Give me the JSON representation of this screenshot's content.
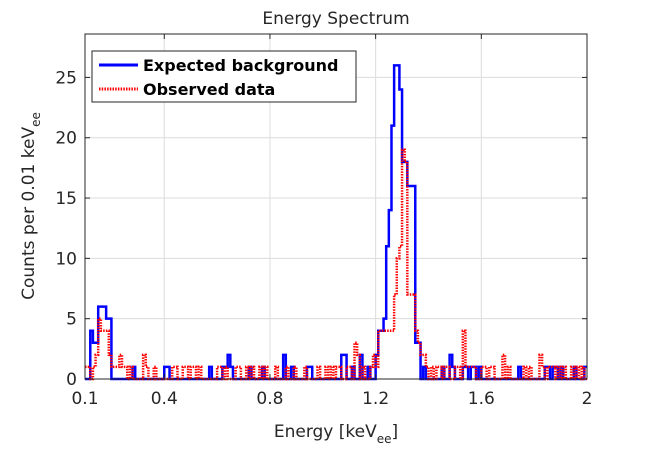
{
  "chart_data": {
    "type": "line",
    "style": "stairs",
    "title": "Energy Spectrum",
    "xlabel": "Energy [keV",
    "xlabel_sub": "ee",
    "xlabel_end": "]",
    "ylabel": "Counts per 0.01 keV",
    "ylabel_sub": "ee",
    "xlim": [
      0.1,
      2
    ],
    "ylim": [
      0,
      28.6
    ],
    "xticks": [
      0.1,
      0.4,
      0.8,
      1.2,
      1.6,
      2
    ],
    "xtick_labels": [
      "0.1",
      "0.4",
      "0.8",
      "1.2",
      "1.6",
      "2"
    ],
    "yticks": [
      0,
      5,
      10,
      15,
      20,
      25
    ],
    "ytick_labels": [
      "0",
      "5",
      "10",
      "15",
      "20",
      "25"
    ],
    "grid": true,
    "legend_position": "top-left",
    "bin_start": 0.1,
    "bin_width": 0.01,
    "series": [
      {
        "name": "Expected background",
        "color": "#0000ff",
        "line": "solid",
        "values": [
          0,
          0,
          4,
          3,
          3,
          6,
          6,
          6,
          5,
          5,
          0,
          0,
          0,
          0,
          0,
          0,
          0,
          0,
          1,
          0,
          0,
          0,
          0,
          0,
          0,
          0,
          0,
          0,
          0,
          0,
          1,
          1,
          0,
          0,
          0,
          0,
          0,
          0,
          0,
          0,
          0,
          0,
          0,
          0,
          0,
          0,
          0,
          1,
          0,
          0,
          0,
          0,
          1,
          1,
          2,
          1,
          0,
          0,
          0,
          0,
          0,
          0,
          1,
          0,
          0,
          0,
          0,
          1,
          0,
          0,
          0,
          0,
          0,
          0,
          0,
          2,
          0,
          0,
          1,
          0,
          0,
          0,
          0,
          0,
          1,
          1,
          0,
          0,
          0,
          0,
          0,
          0,
          0,
          0,
          0,
          0,
          0,
          2,
          2,
          0,
          0,
          1,
          0,
          0,
          2,
          0,
          0,
          1,
          0,
          0,
          2,
          4,
          4,
          5,
          11,
          14,
          21,
          26,
          26,
          24,
          18,
          18,
          16,
          16,
          16,
          3,
          3,
          0,
          1,
          0,
          0,
          0,
          0,
          0,
          0,
          1,
          0,
          0,
          2,
          1,
          0,
          0,
          0,
          1,
          1,
          0,
          1,
          1,
          0,
          1,
          0,
          0,
          0,
          0,
          0,
          0,
          0,
          0,
          0,
          0,
          0,
          0,
          0,
          0,
          1,
          0,
          0,
          0,
          0,
          0,
          0,
          0,
          0,
          0,
          1,
          1,
          0,
          1,
          1,
          0,
          1,
          0,
          0,
          0,
          0,
          1,
          0,
          0,
          0,
          1
        ]
      },
      {
        "name": "Observed data",
        "color": "#ff0000",
        "line": "dotted",
        "values": [
          1,
          1,
          0,
          1,
          2,
          5,
          4,
          4,
          4,
          2,
          1,
          1,
          1,
          2,
          1,
          1,
          0,
          1,
          0,
          0,
          0,
          0,
          2,
          1,
          0,
          0,
          1,
          0,
          0,
          0,
          0,
          0,
          0,
          1,
          1,
          0,
          0,
          1,
          1,
          0,
          1,
          1,
          0,
          1,
          0,
          0,
          0,
          0,
          0,
          0,
          1,
          1,
          0,
          1,
          0,
          0,
          0,
          1,
          1,
          0,
          0,
          1,
          0,
          1,
          0,
          0,
          1,
          0,
          1,
          0,
          0,
          0,
          1,
          0,
          0,
          0,
          1,
          0,
          0,
          1,
          0,
          0,
          0,
          1,
          0,
          0,
          0,
          0,
          1,
          0,
          0,
          1,
          0,
          1,
          0,
          1,
          1,
          0,
          0,
          1,
          1,
          0,
          3,
          2,
          0,
          1,
          0,
          0,
          1,
          2,
          1,
          4,
          4,
          4,
          4,
          4,
          4,
          7,
          10,
          11,
          19,
          18,
          7,
          7,
          7,
          4,
          3,
          2,
          2,
          1,
          0,
          1,
          0,
          1,
          1,
          0,
          1,
          1,
          0,
          0,
          1,
          1,
          0,
          4,
          1,
          1,
          1,
          1,
          0,
          0,
          1,
          1,
          0,
          1,
          1,
          0,
          0,
          0,
          2,
          0,
          1,
          0,
          0,
          0,
          0,
          0,
          1,
          0,
          1,
          0,
          0,
          0,
          2,
          1,
          0,
          1,
          1,
          1,
          0,
          1,
          0,
          1,
          0,
          0,
          1,
          0,
          1,
          0,
          1,
          0
        ]
      }
    ]
  }
}
